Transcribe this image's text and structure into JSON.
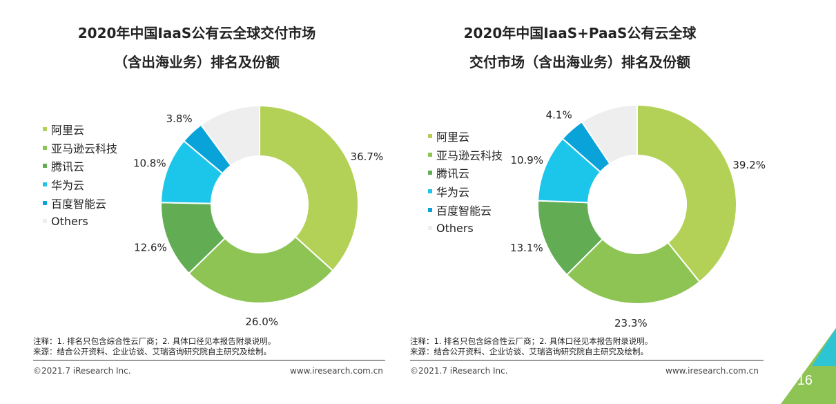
{
  "chart_data": [
    {
      "type": "pie",
      "title_lines": [
        "2020年中国IaaS公有云全球交付市场",
        "（含出海业务）排名及份额"
      ],
      "categories": [
        "阿里云",
        "亚马逊云科技",
        "腾讯云",
        "华为云",
        "百度智能云",
        "Others"
      ],
      "values": [
        36.7,
        26.0,
        12.6,
        10.8,
        3.8,
        10.1
      ],
      "labels": [
        "36.7%",
        "26.0%",
        "12.6%",
        "10.8%",
        "3.8%",
        ""
      ],
      "colors": [
        "#b2d156",
        "#8dc454",
        "#62ad54",
        "#1cc6ea",
        "#0aa3d9",
        "#eeeeee"
      ],
      "donut": true,
      "legend_position": "left"
    },
    {
      "type": "pie",
      "title_lines": [
        "2020年中国IaaS+PaaS公有云全球",
        "交付市场（含出海业务）排名及份额"
      ],
      "categories": [
        "阿里云",
        "亚马逊云科技",
        "腾讯云",
        "华为云",
        "百度智能云",
        "Others"
      ],
      "values": [
        39.2,
        23.3,
        13.1,
        10.9,
        4.1,
        9.4
      ],
      "labels": [
        "39.2%",
        "23.3%",
        "13.1%",
        "10.9%",
        "4.1%",
        ""
      ],
      "colors": [
        "#b2d156",
        "#8dc454",
        "#62ad54",
        "#1cc6ea",
        "#0aa3d9",
        "#eeeeee"
      ],
      "donut": true,
      "legend_position": "left"
    }
  ],
  "notes": {
    "note_line": "注释：1. 排名只包含综合性云厂商；2. 具体口径见本报告附录说明。",
    "source_line": "来源：结合公开资料、企业访谈、艾瑞咨询研究院自主研究及绘制。"
  },
  "footer": {
    "copyright": "©2021.7 iResearch Inc.",
    "website": "www.iresearch.com.cn"
  },
  "page_number": "16"
}
